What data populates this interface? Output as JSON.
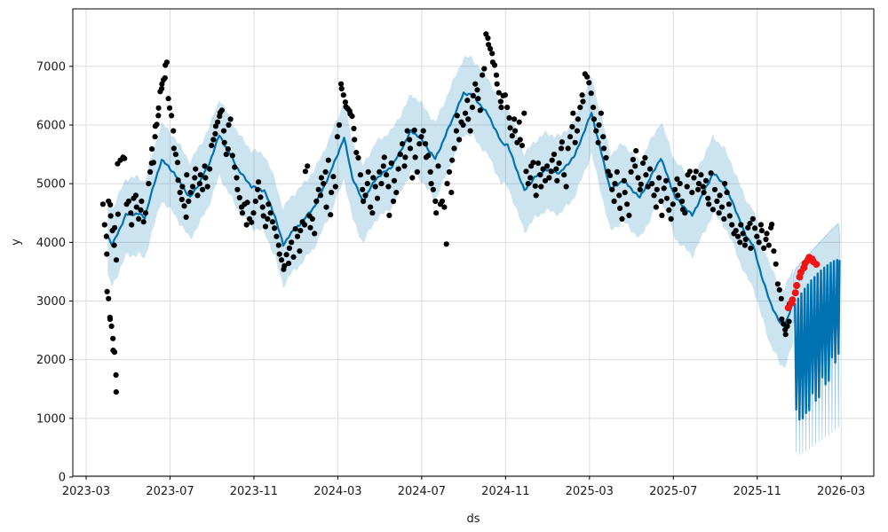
{
  "chart_data": {
    "type": "prophet-forecast (scatter + line + uncertainty band)",
    "title": "",
    "xlabel": "ds",
    "ylabel": "y",
    "x_tick_months": [
      0,
      4,
      8,
      12,
      16,
      20,
      24,
      28,
      32,
      36
    ],
    "x_tick_labels": [
      "2023-03",
      "2023-07",
      "2023-11",
      "2024-03",
      "2024-07",
      "2024-11",
      "2025-03",
      "2025-07",
      "2025-11",
      "2026-03"
    ],
    "y_ticks": [
      0,
      1000,
      2000,
      3000,
      4000,
      5000,
      6000,
      7000
    ],
    "ylim": [
      0,
      7980
    ],
    "xlim_months": [
      -0.64,
      37.55
    ],
    "grid": true,
    "legend": "none",
    "colors": {
      "trend_line": "#0072B2",
      "band_fill": "rgba(0,114,178,0.2)",
      "actuals": "#000000",
      "anomalies": "#f01414",
      "grid": "#dddddd",
      "spine": "#000000"
    },
    "trend_line": [
      [
        0.95,
        4170
      ],
      [
        1.25,
        3950
      ],
      [
        1.9,
        4470
      ],
      [
        2.5,
        4490
      ],
      [
        2.8,
        4420
      ],
      [
        3.0,
        4700
      ],
      [
        3.6,
        5410
      ],
      [
        4.2,
        5180
      ],
      [
        4.6,
        4950
      ],
      [
        4.95,
        4760
      ],
      [
        5.4,
        5010
      ],
      [
        5.9,
        5370
      ],
      [
        6.35,
        5830
      ],
      [
        6.9,
        5480
      ],
      [
        7.3,
        5210
      ],
      [
        7.9,
        4950
      ],
      [
        8.5,
        4880
      ],
      [
        9.0,
        4450
      ],
      [
        9.4,
        3950
      ],
      [
        9.7,
        4130
      ],
      [
        10.3,
        4350
      ],
      [
        10.9,
        4620
      ],
      [
        11.6,
        5150
      ],
      [
        12.3,
        5780
      ],
      [
        12.7,
        5100
      ],
      [
        13.2,
        4690
      ],
      [
        13.8,
        5080
      ],
      [
        14.6,
        5300
      ],
      [
        15.5,
        5900
      ],
      [
        15.9,
        5790
      ],
      [
        16.65,
        5420
      ],
      [
        18.0,
        6540
      ],
      [
        18.4,
        6520
      ],
      [
        19.2,
        6160
      ],
      [
        19.8,
        5700
      ],
      [
        20.1,
        5660
      ],
      [
        20.9,
        4880
      ],
      [
        21.4,
        5110
      ],
      [
        21.9,
        5240
      ],
      [
        22.6,
        5180
      ],
      [
        23.3,
        5480
      ],
      [
        24.1,
        6210
      ],
      [
        25.0,
        4890
      ],
      [
        25.6,
        5060
      ],
      [
        26.4,
        4760
      ],
      [
        27.4,
        5440
      ],
      [
        28.1,
        4760
      ],
      [
        28.9,
        4460
      ],
      [
        29.9,
        5180
      ],
      [
        30.4,
        5000
      ],
      [
        30.9,
        4620
      ],
      [
        31.4,
        4150
      ],
      [
        31.8,
        3950
      ],
      [
        32.2,
        3440
      ],
      [
        32.6,
        2990
      ],
      [
        33.1,
        2610
      ],
      [
        33.3,
        2580
      ],
      [
        33.7,
        2950
      ]
    ],
    "uncertainty_band": {
      "upper_offset": 620,
      "lower_offset": 700,
      "jitter": 55,
      "start_m": 0.98,
      "end_m": 33.7
    },
    "forecast_cycles": {
      "start_m": 33.85,
      "step_m": 0.155,
      "top": [
        2950,
        3040,
        3130,
        3210,
        3280,
        3350,
        3410,
        3470,
        3520,
        3570,
        3610,
        3650,
        3680,
        3700
      ],
      "bottom": [
        1150,
        980,
        1000,
        1090,
        1140,
        1430,
        1300,
        1360,
        1700,
        1580,
        1640,
        2040,
        1950,
        2100
      ],
      "band_top": [
        3560,
        3620,
        3680,
        3740,
        3800,
        3860,
        3920,
        3980,
        4040,
        4100,
        4160,
        4220,
        4270,
        4320
      ],
      "band_bottom": [
        420,
        380,
        400,
        450,
        470,
        520,
        560,
        600,
        640,
        680,
        720,
        760,
        800,
        840
      ]
    },
    "actuals_buckets": [
      {
        "m": 0.82,
        "s": 0.062,
        "v": [
          4650,
          4300,
          4100,
          3800,
          4700,
          4640,
          4450,
          4200,
          3950,
          4250,
          3700,
          4480
        ]
      },
      {
        "m": 1.02,
        "s": 0.048,
        "v": [
          3160,
          3040,
          2720,
          2690,
          2570,
          2360,
          2160,
          2130,
          1740,
          1450
        ]
      },
      {
        "m": 1.52,
        "s": 0.11,
        "v": [
          5340,
          5400,
          5450,
          5430
        ]
      },
      {
        "m": 1.95,
        "s": 0.079,
        "v": [
          4650,
          4700,
          4500,
          4300,
          4750,
          4800,
          4600,
          4400,
          4550,
          4700,
          4350,
          4500
        ]
      },
      {
        "m": 3.0,
        "s": 0.053,
        "v": [
          5000,
          5200,
          5350,
          5590,
          5360,
          5800,
          5980,
          6010,
          6160,
          6290,
          6570,
          6620,
          6700,
          6770,
          6800,
          7020,
          7070,
          6450
        ]
      },
      {
        "m": 4.0,
        "s": 0.068,
        "v": [
          6290,
          6160,
          5900,
          5600,
          5500,
          5360,
          5060,
          4850,
          4730,
          4950,
          4620,
          4430,
          5150,
          4700
        ]
      },
      {
        "m": 5.0,
        "s": 0.079,
        "v": [
          4850,
          4950,
          5100,
          5250,
          4800,
          5000,
          5150,
          4900,
          5300,
          5100,
          4950,
          5250
        ]
      },
      {
        "m": 6.0,
        "s": 0.068,
        "v": [
          5650,
          5750,
          5850,
          5980,
          6050,
          6150,
          6210,
          6250,
          5900,
          5700,
          5500,
          5590,
          6000,
          6100
        ]
      },
      {
        "m": 7.0,
        "s": 0.079,
        "v": [
          5480,
          5280,
          5100,
          4900,
          4760,
          4600,
          4500,
          4650,
          4300,
          4680,
          4400,
          4340
        ]
      },
      {
        "m": 8.0,
        "s": 0.079,
        "v": [
          4500,
          4700,
          4900,
          5030,
          4770,
          4600,
          4450,
          4270,
          4400,
          4650,
          4500,
          4350
        ]
      },
      {
        "m": 9.0,
        "s": 0.079,
        "v": [
          4240,
          4100,
          3950,
          3800,
          3700,
          3540,
          3600,
          3790,
          3640,
          3900,
          4000,
          3750
        ]
      },
      {
        "m": 10.0,
        "s": 0.079,
        "v": [
          4230,
          4100,
          3850,
          4200,
          4350,
          4300,
          5210,
          5300,
          4450,
          4250,
          4400,
          4150
        ]
      },
      {
        "m": 11.0,
        "s": 0.079,
        "v": [
          4700,
          4900,
          4800,
          5100,
          5000,
          5200,
          4600,
          5400,
          4470,
          4850,
          5120,
          4950
        ]
      },
      {
        "m": 12.0,
        "s": 0.068,
        "v": [
          5800,
          6000,
          6700,
          6620,
          6510,
          6390,
          6310,
          6280,
          6240,
          6190,
          6150,
          5940,
          5750,
          5530
        ]
      },
      {
        "m": 13.0,
        "s": 0.079,
        "v": [
          5440,
          5150,
          4900,
          4700,
          4800,
          5000,
          5200,
          4600,
          4500,
          5100,
          4950,
          4750
        ]
      },
      {
        "m": 14.0,
        "s": 0.079,
        "v": [
          5200,
          5000,
          5300,
          5450,
          5150,
          4950,
          4460,
          5350,
          4700,
          5050,
          4850,
          5250
        ]
      },
      {
        "m": 15.0,
        "s": 0.079,
        "v": [
          5500,
          5680,
          5300,
          5450,
          5900,
          5750,
          5600,
          5100,
          5910,
          5450,
          5200,
          5680
        ]
      },
      {
        "m": 16.0,
        "s": 0.079,
        "v": [
          5800,
          5900,
          5680,
          5450,
          5480,
          5200,
          5000,
          4900,
          4700,
          4500,
          5300,
          4650
        ]
      },
      {
        "m": 17.0,
        "s": 0.079,
        "v": [
          4700,
          4600,
          3970,
          5000,
          5200,
          4850,
          5400,
          5600,
          5900,
          6160,
          5750,
          6050
        ]
      },
      {
        "m": 18.0,
        "s": 0.079,
        "v": [
          6000,
          6200,
          6420,
          6100,
          5900,
          6300,
          6500,
          6700,
          6600,
          6450,
          6250,
          6850
        ]
      },
      {
        "m": 19.0,
        "s": 0.068,
        "v": [
          6960,
          7550,
          7480,
          7370,
          7300,
          7220,
          7070,
          7020,
          6850,
          6700,
          6550,
          6400,
          6300,
          6500
        ]
      },
      {
        "m": 20.0,
        "s": 0.079,
        "v": [
          6510,
          6300,
          6120,
          5950,
          5815,
          6100,
          5900,
          5700,
          6050,
          5750,
          5650,
          6200
        ]
      },
      {
        "m": 21.0,
        "s": 0.079,
        "v": [
          5210,
          5000,
          5100,
          5300,
          5360,
          4960,
          4800,
          5350,
          5150,
          4950,
          5250,
          5050
        ]
      },
      {
        "m": 22.0,
        "s": 0.079,
        "v": [
          5300,
          5100,
          5210,
          5400,
          5500,
          5250,
          5050,
          5350,
          5600,
          5710,
          5150,
          4950
        ]
      },
      {
        "m": 23.0,
        "s": 0.079,
        "v": [
          5600,
          5800,
          5970,
          6200,
          5700,
          5900,
          6100,
          6300,
          6510,
          6400,
          6870,
          6820
        ]
      },
      {
        "m": 24.0,
        "s": 0.079,
        "v": [
          6720,
          6540,
          6300,
          6100,
          5900,
          5700,
          6000,
          6200,
          5800,
          5600,
          5440,
          5210
        ]
      },
      {
        "m": 25.0,
        "s": 0.079,
        "v": [
          5140,
          4900,
          4700,
          5000,
          5200,
          4800,
          4580,
          4400,
          5050,
          4850,
          4650,
          4460
        ]
      },
      {
        "m": 26.0,
        "s": 0.079,
        "v": [
          5200,
          5410,
          5300,
          5560,
          5100,
          4900,
          4990,
          5350,
          5440,
          5150,
          4950,
          5250
        ]
      },
      {
        "m": 27.0,
        "s": 0.079,
        "v": [
          5000,
          4800,
          4600,
          4900,
          5100,
          4700,
          4460,
          4920,
          5050,
          4750,
          4550,
          4400
        ]
      },
      {
        "m": 28.0,
        "s": 0.079,
        "v": [
          4650,
          4900,
          5080,
          4800,
          5000,
          4700,
          4560,
          4500,
          4950,
          5150,
          5210,
          4850
        ]
      },
      {
        "m": 29.0,
        "s": 0.079,
        "v": [
          5100,
          5210,
          4900,
          5000,
          5150,
          4950,
          4850,
          5050,
          4750,
          4650,
          5180,
          4560
        ]
      },
      {
        "m": 30.0,
        "s": 0.079,
        "v": [
          4900,
          4700,
          4500,
          4800,
          4600,
          4400,
          5000,
          4850,
          4650,
          4450,
          4300,
          4150
        ]
      },
      {
        "m": 31.0,
        "s": 0.079,
        "v": [
          4200,
          4100,
          4000,
          4300,
          4150,
          3950,
          4050,
          4250,
          4320,
          3900,
          4400,
          4240
        ]
      },
      {
        "m": 32.0,
        "s": 0.079,
        "v": [
          4100,
          4000,
          4300,
          4200,
          3900,
          4050,
          4150,
          3950,
          4250,
          4305,
          3850,
          3630
        ]
      },
      {
        "m": 33.0,
        "s": 0.062,
        "v": [
          3290,
          3190,
          3040,
          2690,
          2610,
          2510,
          2430,
          2570,
          2650,
          2950
        ]
      }
    ],
    "anomalies": {
      "m": 33.5,
      "s": 0.1,
      "v": [
        2885,
        2960,
        3020,
        3140,
        3265,
        3410,
        3490,
        3565,
        3640,
        3700,
        3745,
        3715,
        3670,
        3625
      ]
    },
    "marker_sizes": {
      "actual_r": 3.1,
      "anomaly_r": 4.0
    }
  }
}
